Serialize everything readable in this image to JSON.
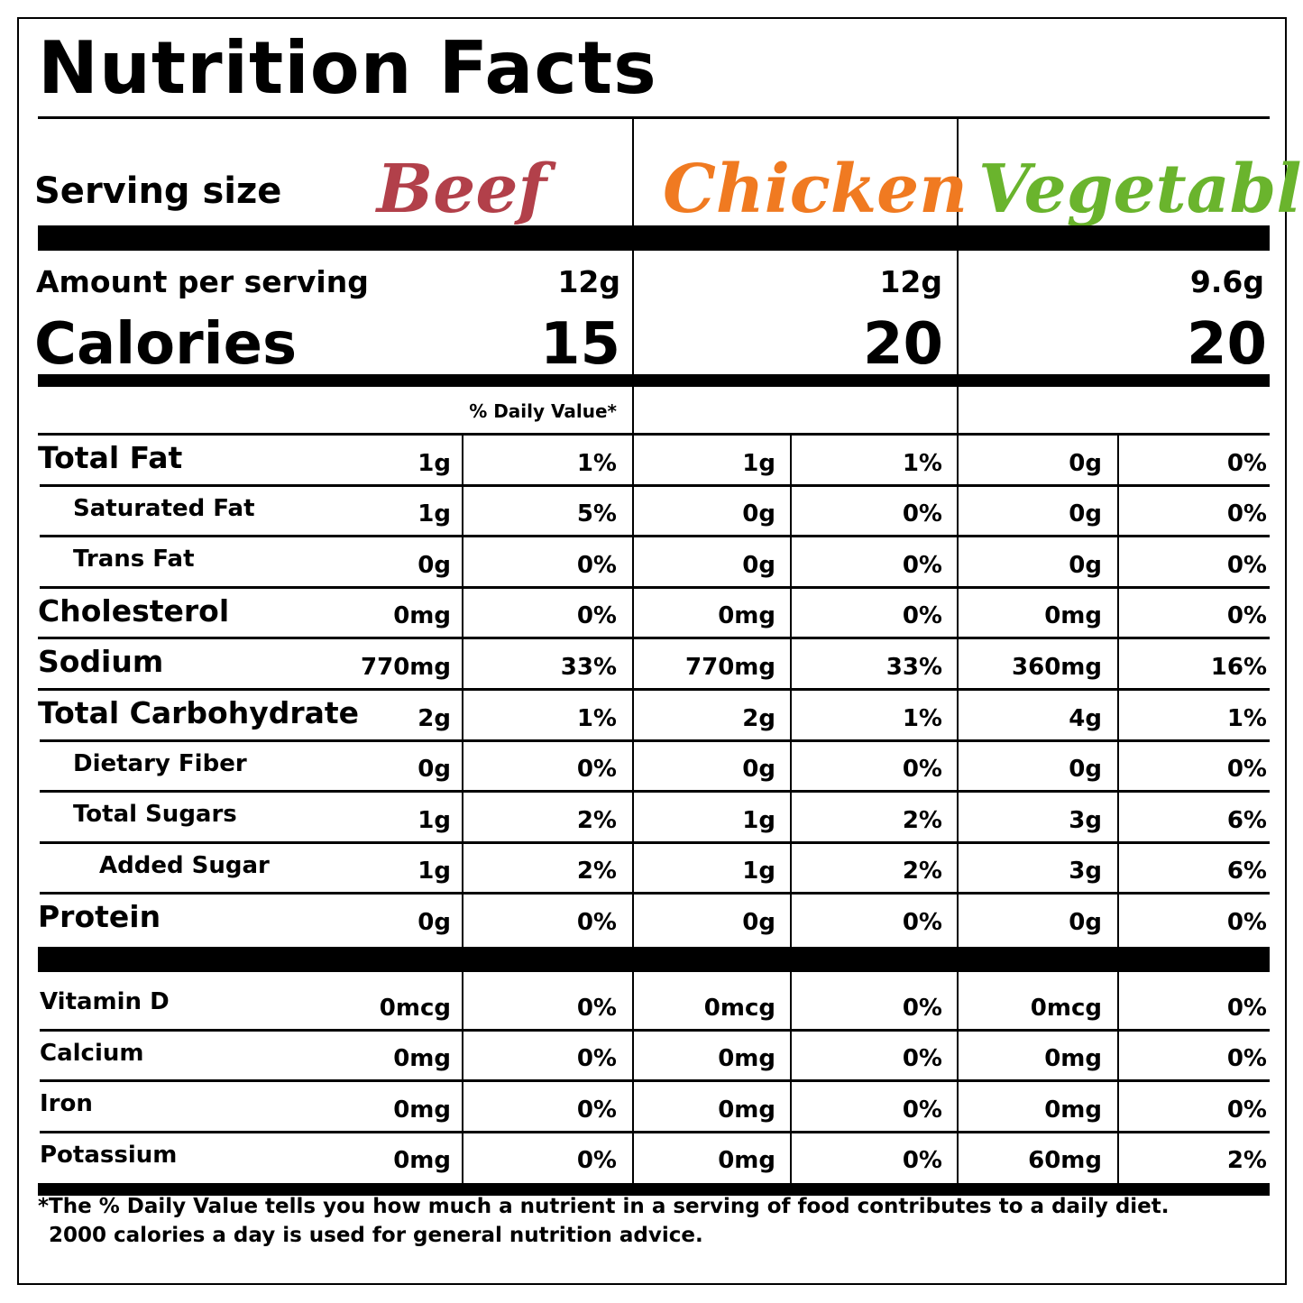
{
  "title": "Nutrition Facts",
  "serving_size_label": "Serving size",
  "amount_label": "Amount per serving",
  "calories_label": "Calories",
  "dv_header": "% Daily Value*",
  "products": [
    {
      "name": "Beef",
      "color": "#b2404a",
      "serving": "12g",
      "calories": "15"
    },
    {
      "name": "Chicken",
      "color": "#f07a21",
      "serving": "12g",
      "calories": "20"
    },
    {
      "name": "Vegetable",
      "color": "#6ab42d",
      "serving": "9.6g",
      "calories": "20"
    }
  ],
  "nutrients": [
    {
      "label": "Total Fat",
      "level": "major",
      "values": [
        "1g",
        "1%",
        "1g",
        "1%",
        "0g",
        "0%"
      ]
    },
    {
      "label": "Saturated Fat",
      "level": "sub",
      "values": [
        "1g",
        "5%",
        "0g",
        "0%",
        "0g",
        "0%"
      ]
    },
    {
      "label": "Trans Fat",
      "level": "sub",
      "values": [
        "0g",
        "0%",
        "0g",
        "0%",
        "0g",
        "0%"
      ]
    },
    {
      "label": "Cholesterol",
      "level": "major",
      "values": [
        "0mg",
        "0%",
        "0mg",
        "0%",
        "0mg",
        "0%"
      ]
    },
    {
      "label": "Sodium",
      "level": "major",
      "values": [
        "770mg",
        "33%",
        "770mg",
        "33%",
        "360mg",
        "16%"
      ]
    },
    {
      "label": "Total Carbohydrate",
      "level": "major",
      "values": [
        "2g",
        "1%",
        "2g",
        "1%",
        "4g",
        "1%"
      ]
    },
    {
      "label": "Dietary Fiber",
      "level": "sub",
      "values": [
        "0g",
        "0%",
        "0g",
        "0%",
        "0g",
        "0%"
      ]
    },
    {
      "label": "Total Sugars",
      "level": "sub",
      "values": [
        "1g",
        "2%",
        "1g",
        "2%",
        "3g",
        "6%"
      ]
    },
    {
      "label": "Added Sugar",
      "level": "sub2",
      "values": [
        "1g",
        "2%",
        "1g",
        "2%",
        "3g",
        "6%"
      ]
    },
    {
      "label": "Protein",
      "level": "major",
      "values": [
        "0g",
        "0%",
        "0g",
        "0%",
        "0g",
        "0%"
      ]
    }
  ],
  "vitamins": [
    {
      "label": "Vitamin D",
      "values": [
        "0mcg",
        "0%",
        "0mcg",
        "0%",
        "0mcg",
        "0%"
      ]
    },
    {
      "label": "Calcium",
      "values": [
        "0mg",
        "0%",
        "0mg",
        "0%",
        "0mg",
        "0%"
      ]
    },
    {
      "label": "Iron",
      "values": [
        "0mg",
        "0%",
        "0mg",
        "0%",
        "0mg",
        "0%"
      ]
    },
    {
      "label": "Potassium",
      "values": [
        "0mg",
        "0%",
        "0mg",
        "0%",
        "60mg",
        "2%"
      ]
    }
  ],
  "footnote_line1": "*The % Daily Value tells you how much a nutrient in a serving of food contributes to a daily diet.",
  "footnote_line2": "2000 calories a day is used for general nutrition advice."
}
